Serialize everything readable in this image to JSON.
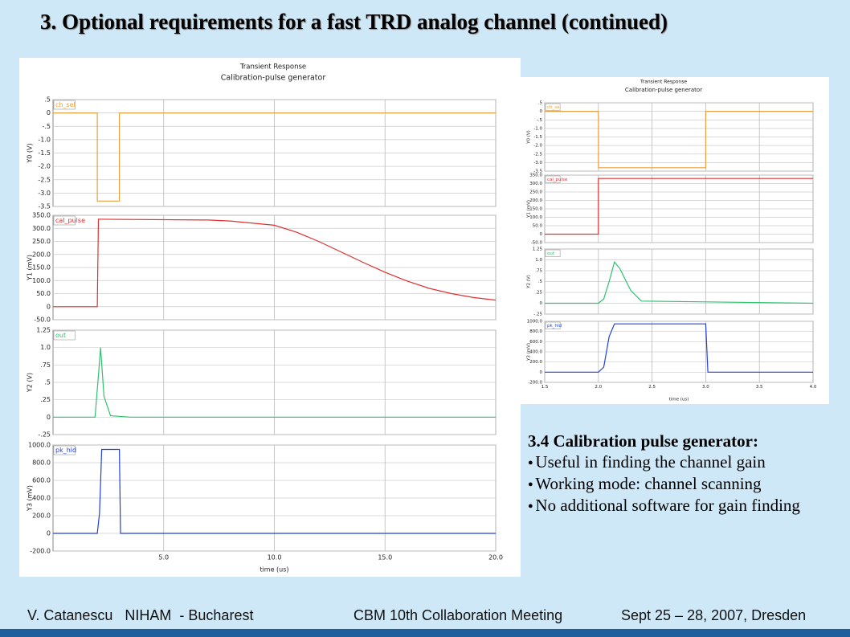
{
  "title": "3. Optional requirements for a fast TRD analog channel (continued)",
  "chart_data": [
    {
      "type": "line",
      "title": "Transient Response",
      "subtitle": "Calibration-pulse generator",
      "x_label": "time (us)",
      "xlim": [
        0,
        20
      ],
      "xticks": [
        {
          "value": 5,
          "label": "5.0"
        },
        {
          "value": 10,
          "label": "10.0"
        },
        {
          "value": 15,
          "label": "15.0"
        },
        {
          "value": 20,
          "label": "20.0"
        }
      ],
      "panels": [
        {
          "name": "ch_sel",
          "y_label": "Y0 (V)",
          "color": "#e8a040",
          "ylim": [
            -3.5,
            0.5
          ],
          "yticks": [
            {
              "value": 0.5,
              "label": ".5"
            },
            0,
            {
              "value": -0.5,
              "label": "-.5"
            },
            {
              "value": -1,
              "label": "-1.0"
            },
            {
              "value": -1.5,
              "label": "-1.5"
            },
            {
              "value": -2,
              "label": "-2.0"
            },
            {
              "value": -2.5,
              "label": "-2.5"
            },
            {
              "value": -3,
              "label": "-3.0"
            },
            {
              "value": -3.5,
              "label": "-3.5"
            }
          ],
          "x": [
            0,
            2,
            2,
            3,
            3,
            20
          ],
          "values": [
            0,
            0,
            -3.3,
            -3.3,
            0,
            0
          ]
        },
        {
          "name": "cal_pulse",
          "y_label": "Y1 (mV)",
          "color": "#e03030",
          "ylim": [
            -50,
            350
          ],
          "yticks": [
            {
              "value": 350,
              "label": "350.0"
            },
            {
              "value": 300,
              "label": "300.0"
            },
            {
              "value": 250,
              "label": "250.0"
            },
            {
              "value": 200,
              "label": "200.0"
            },
            {
              "value": 150,
              "label": "150.0"
            },
            {
              "value": 100,
              "label": "100.0"
            },
            {
              "value": 50,
              "label": "50.0"
            },
            0,
            {
              "value": -50,
              "label": "-50.0"
            }
          ],
          "x": [
            0,
            2,
            2.05,
            7,
            8,
            10,
            11,
            12,
            13,
            14,
            15,
            16,
            17,
            18,
            19,
            20
          ],
          "values": [
            0,
            0,
            335,
            332,
            328,
            312,
            285,
            250,
            210,
            170,
            132,
            98,
            70,
            50,
            35,
            25
          ]
        },
        {
          "name": "out",
          "y_label": "Y2 (V)",
          "color": "#30c070",
          "ylim": [
            -0.25,
            1.25
          ],
          "yticks": [
            1.25,
            {
              "value": 1,
              "label": "1.0"
            },
            {
              "value": 0.75,
              "label": ".75"
            },
            {
              "value": 0.5,
              "label": ".5"
            },
            {
              "value": 0.25,
              "label": ".25"
            },
            0,
            {
              "value": -0.25,
              "label": "-.25"
            }
          ],
          "x": [
            0,
            1.9,
            2.05,
            2.15,
            2.3,
            2.6,
            3.5,
            20
          ],
          "values": [
            0,
            0,
            0.6,
            1.0,
            0.3,
            0.02,
            0,
            0
          ]
        },
        {
          "name": "pk_hld",
          "y_label": "Y3 (mV)",
          "color": "#2040e0",
          "ylim": [
            -200,
            1000
          ],
          "yticks": [
            {
              "value": 1000,
              "label": "1000.0"
            },
            {
              "value": 800,
              "label": "800.0"
            },
            {
              "value": 600,
              "label": "600.0"
            },
            {
              "value": 400,
              "label": "400.0"
            },
            {
              "value": 200,
              "label": "200.0"
            },
            0,
            {
              "value": -200,
              "label": "-200.0"
            }
          ],
          "x": [
            0,
            2,
            2.1,
            2.2,
            3,
            3.05,
            20
          ],
          "values": [
            0,
            0,
            230,
            950,
            950,
            0,
            0
          ]
        }
      ]
    },
    {
      "type": "line",
      "title": "Transient Response",
      "subtitle": "Calibration-pulse generator",
      "x_label": "time (us)",
      "xlim": [
        1.5,
        4
      ],
      "xticks": [
        1.5,
        {
          "value": 2,
          "label": "2.0"
        },
        2.5,
        {
          "value": 3,
          "label": "3.0"
        },
        3.5,
        {
          "value": 4,
          "label": "4.0"
        }
      ],
      "panels": [
        {
          "name": "ch_sel",
          "y_label": "Y0 (V)",
          "color": "#e8a040",
          "ylim": [
            -3.5,
            0.5
          ],
          "yticks": [
            {
              "value": 0.5,
              "label": ".5"
            },
            0,
            {
              "value": -0.5,
              "label": "-.5"
            },
            {
              "value": -1,
              "label": "-1.0"
            },
            {
              "value": -1.5,
              "label": "-1.5"
            },
            {
              "value": -2,
              "label": "-2.0"
            },
            {
              "value": -2.5,
              "label": "-2.5"
            },
            {
              "value": -3,
              "label": "-3.0"
            },
            {
              "value": -3.5,
              "label": "-3.5"
            }
          ],
          "x": [
            1.5,
            2,
            2,
            3,
            3,
            4
          ],
          "values": [
            0,
            0,
            -3.3,
            -3.3,
            0,
            0
          ]
        },
        {
          "name": "cal_pulse",
          "y_label": "Y1 (mV)",
          "color": "#e03030",
          "ylim": [
            -50,
            350
          ],
          "yticks": [
            {
              "value": 350,
              "label": "350.0"
            },
            {
              "value": 300,
              "label": "300.0"
            },
            {
              "value": 250,
              "label": "250.0"
            },
            {
              "value": 200,
              "label": "200.0"
            },
            {
              "value": 150,
              "label": "150.0"
            },
            {
              "value": 100,
              "label": "100.0"
            },
            {
              "value": 50,
              "label": "50.0"
            },
            0,
            {
              "value": -50,
              "label": "-50.0"
            }
          ],
          "x": [
            1.5,
            2,
            2,
            4
          ],
          "values": [
            0,
            0,
            330,
            330
          ]
        },
        {
          "name": "out",
          "y_label": "Y2 (V)",
          "color": "#30c070",
          "ylim": [
            -0.25,
            1.25
          ],
          "yticks": [
            1.25,
            {
              "value": 1,
              "label": "1.0"
            },
            {
              "value": 0.75,
              "label": ".75"
            },
            {
              "value": 0.5,
              "label": ".5"
            },
            {
              "value": 0.25,
              "label": ".25"
            },
            0,
            {
              "value": -0.25,
              "label": "-.25"
            }
          ],
          "x": [
            1.5,
            2,
            2.05,
            2.1,
            2.15,
            2.2,
            2.3,
            2.4,
            4
          ],
          "values": [
            0,
            0,
            0.1,
            0.5,
            0.95,
            0.8,
            0.3,
            0.05,
            0
          ]
        },
        {
          "name": "pk_hld",
          "y_label": "Y3 (mV)",
          "color": "#2040e0",
          "ylim": [
            -200,
            1000
          ],
          "yticks": [
            {
              "value": 1000,
              "label": "1000.0"
            },
            {
              "value": 800,
              "label": "800.0"
            },
            {
              "value": 600,
              "label": "600.0"
            },
            {
              "value": 400,
              "label": "400.0"
            },
            {
              "value": 200,
              "label": "200.0"
            },
            0,
            {
              "value": -200,
              "label": "-200.0"
            }
          ],
          "x": [
            1.5,
            2,
            2.05,
            2.1,
            2.15,
            3,
            3.02,
            4
          ],
          "values": [
            0,
            0,
            100,
            700,
            950,
            950,
            0,
            0
          ]
        }
      ]
    }
  ],
  "notes": {
    "heading": "3.4 Calibration pulse generator:",
    "bullets": [
      "Useful in finding the channel gain",
      "Working mode: channel scanning",
      "No additional software for gain finding"
    ]
  },
  "footer": {
    "author": "V. Catanescu   NIHAM  - Bucharest",
    "event": "CBM 10th Collaboration Meeting",
    "date": "Sept 25 – 28, 2007, Dresden"
  }
}
